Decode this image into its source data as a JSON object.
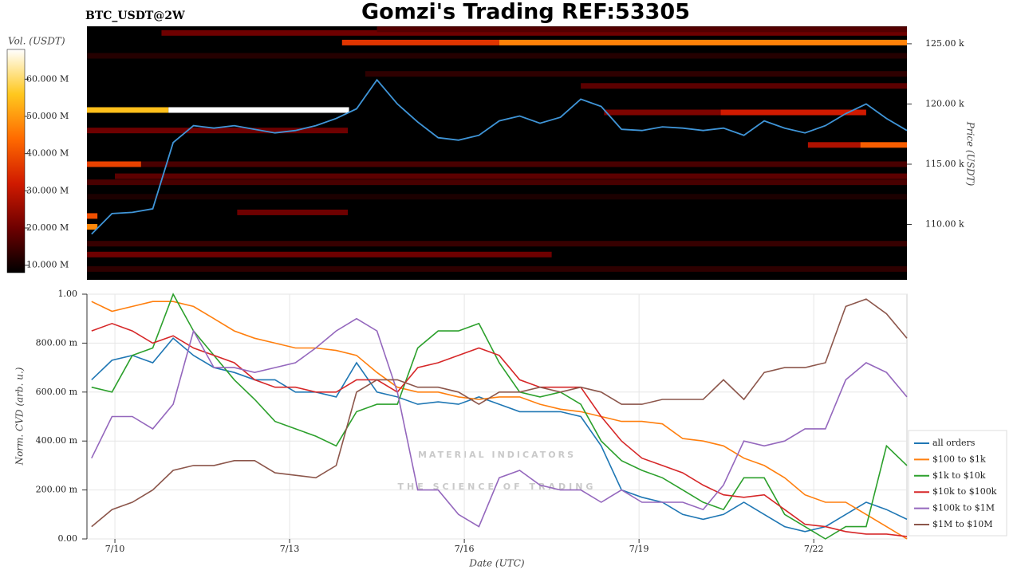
{
  "chart_data": [
    {
      "type": "heatmap",
      "title": "Gomzi's Trading REF:53305",
      "subtitle": "BTC_USDT@2W",
      "colorbar_label": "Vol. (USDT)",
      "clim": [
        8000000,
        68000000
      ],
      "colorscale": [
        "#000000",
        "#6e0000",
        "#d01a00",
        "#ff6a00",
        "#ffc81e",
        "#ffffff"
      ],
      "colorbar_ticks": [
        {
          "value": 10000000,
          "label": "10.000 M"
        },
        {
          "value": 20000000,
          "label": "20.000 M"
        },
        {
          "value": 30000000,
          "label": "30.000 M"
        },
        {
          "value": 40000000,
          "label": "40.000 M"
        },
        {
          "value": 50000000,
          "label": "50.000 M"
        },
        {
          "value": 60000000,
          "label": "60.000 M"
        }
      ],
      "y_label": "Price (USDT)",
      "ylim": [
        105400,
        126450
      ],
      "yticks": [
        {
          "value": 110000,
          "label": "110.00 k"
        },
        {
          "value": 115000,
          "label": "115.00 k"
        },
        {
          "value": 120000,
          "label": "120.00 k"
        },
        {
          "value": 125000,
          "label": "125.00 k"
        }
      ],
      "xlim": [
        9.52,
        23.6
      ],
      "x": [
        9.6,
        9.95,
        10.3,
        10.65,
        11.0,
        11.35,
        11.7,
        12.05,
        12.4,
        12.75,
        13.1,
        13.45,
        13.8,
        14.15,
        14.5,
        14.85,
        15.2,
        15.55,
        15.9,
        16.25,
        16.6,
        16.95,
        17.3,
        17.65,
        18.0,
        18.35,
        18.7,
        19.05,
        19.4,
        19.75,
        20.1,
        20.45,
        20.8,
        21.15,
        21.5,
        21.85,
        22.2,
        22.55,
        22.9,
        23.25,
        23.6
      ],
      "price": {
        "color": "#3f95d8",
        "values": [
          109200,
          110900,
          111000,
          111300,
          116800,
          118200,
          118000,
          118200,
          117900,
          117600,
          117800,
          118200,
          118800,
          119600,
          122000,
          120000,
          118500,
          117200,
          117000,
          117400,
          118600,
          119000,
          118400,
          118900,
          120400,
          119800,
          117900,
          117800,
          118100,
          118000,
          117800,
          118000,
          117400,
          118600,
          118000,
          117600,
          118200,
          119200,
          120000,
          118800,
          117800
        ]
      },
      "levels": [
        {
          "price": 119500,
          "x0": 9.52,
          "x1": 10.92,
          "volume": 55000000
        },
        {
          "price": 119500,
          "x0": 10.92,
          "x1": 14.02,
          "volume": 68000000
        },
        {
          "price": 125100,
          "x0": 13.9,
          "x1": 16.6,
          "volume": 36000000
        },
        {
          "price": 125100,
          "x0": 16.6,
          "x1": 23.6,
          "volume": 47000000
        },
        {
          "price": 125900,
          "x0": 10.8,
          "x1": 23.6,
          "volume": 20000000
        },
        {
          "price": 126200,
          "x0": 14.5,
          "x1": 23.6,
          "volume": 17000000
        },
        {
          "price": 115000,
          "x0": 9.52,
          "x1": 10.45,
          "volume": 38000000
        },
        {
          "price": 115000,
          "x0": 10.45,
          "x1": 23.6,
          "volume": 16000000
        },
        {
          "price": 116600,
          "x0": 22.8,
          "x1": 23.6,
          "volume": 42000000
        },
        {
          "price": 116600,
          "x0": 21.9,
          "x1": 22.8,
          "volume": 28000000
        },
        {
          "price": 119300,
          "x0": 20.4,
          "x1": 22.9,
          "volume": 32000000
        },
        {
          "price": 119300,
          "x0": 18.4,
          "x1": 20.4,
          "volume": 22000000
        },
        {
          "price": 109800,
          "x0": 9.52,
          "x1": 9.7,
          "volume": 48000000
        },
        {
          "price": 110700,
          "x0": 9.52,
          "x1": 9.7,
          "volume": 40000000
        },
        {
          "price": 108400,
          "x0": 9.52,
          "x1": 23.6,
          "volume": 14000000
        },
        {
          "price": 107500,
          "x0": 9.52,
          "x1": 17.5,
          "volume": 20000000
        },
        {
          "price": 106300,
          "x0": 9.52,
          "x1": 23.6,
          "volume": 13000000
        },
        {
          "price": 111000,
          "x0": 12.1,
          "x1": 14.0,
          "volume": 20000000
        },
        {
          "price": 113500,
          "x0": 9.52,
          "x1": 23.6,
          "volume": 16000000
        },
        {
          "price": 114000,
          "x0": 10.0,
          "x1": 23.6,
          "volume": 18000000
        },
        {
          "price": 117800,
          "x0": 9.52,
          "x1": 14.0,
          "volume": 20000000
        },
        {
          "price": 121500,
          "x0": 18.0,
          "x1": 23.6,
          "volume": 18000000
        },
        {
          "price": 124000,
          "x0": 9.52,
          "x1": 23.6,
          "volume": 12000000
        },
        {
          "price": 112300,
          "x0": 9.52,
          "x1": 23.6,
          "volume": 11000000
        },
        {
          "price": 122500,
          "x0": 14.3,
          "x1": 23.6,
          "volume": 13000000
        }
      ]
    },
    {
      "type": "line",
      "y_label": "Norm. CVD (arb. u.)",
      "x_label": "Date (UTC)",
      "grid": true,
      "annotations": [
        "MATERIAL INDICATORS",
        "THE SCIENCE OF TRADING"
      ],
      "xlim": [
        9.52,
        23.6
      ],
      "xticks": [
        {
          "value": 10,
          "label": "7/10"
        },
        {
          "value": 13,
          "label": "7/13"
        },
        {
          "value": 16,
          "label": "7/16"
        },
        {
          "value": 19,
          "label": "7/19"
        },
        {
          "value": 22,
          "label": "7/22"
        }
      ],
      "ylim": [
        0,
        1
      ],
      "yticks": [
        {
          "value": 0,
          "label": "0.00"
        },
        {
          "value": 0.2,
          "label": "200.00 m"
        },
        {
          "value": 0.4,
          "label": "400.00 m"
        },
        {
          "value": 0.6,
          "label": "600.00 m"
        },
        {
          "value": 0.8,
          "label": "800.00 m"
        },
        {
          "value": 1,
          "label": "1.00"
        }
      ],
      "x": [
        9.6,
        9.95,
        10.3,
        10.65,
        11.0,
        11.35,
        11.7,
        12.05,
        12.4,
        12.75,
        13.1,
        13.45,
        13.8,
        14.15,
        14.5,
        14.85,
        15.2,
        15.55,
        15.9,
        16.25,
        16.6,
        16.95,
        17.3,
        17.65,
        18.0,
        18.35,
        18.7,
        19.05,
        19.4,
        19.75,
        20.1,
        20.45,
        20.8,
        21.15,
        21.5,
        21.85,
        22.2,
        22.55,
        22.9,
        23.25,
        23.6
      ],
      "series": [
        {
          "name": "all orders",
          "color": "#1f77b4",
          "values": [
            0.65,
            0.73,
            0.75,
            0.72,
            0.82,
            0.75,
            0.7,
            0.68,
            0.65,
            0.65,
            0.6,
            0.6,
            0.58,
            0.72,
            0.6,
            0.58,
            0.55,
            0.56,
            0.55,
            0.58,
            0.55,
            0.52,
            0.52,
            0.52,
            0.5,
            0.38,
            0.2,
            0.17,
            0.15,
            0.1,
            0.08,
            0.1,
            0.15,
            0.1,
            0.05,
            0.03,
            0.05,
            0.1,
            0.15,
            0.12,
            0.08
          ]
        },
        {
          "name": "$100 to $1k",
          "color": "#ff7f0e",
          "values": [
            0.97,
            0.93,
            0.95,
            0.97,
            0.97,
            0.95,
            0.9,
            0.85,
            0.82,
            0.8,
            0.78,
            0.78,
            0.77,
            0.75,
            0.68,
            0.62,
            0.6,
            0.6,
            0.58,
            0.57,
            0.58,
            0.58,
            0.55,
            0.53,
            0.52,
            0.5,
            0.48,
            0.48,
            0.47,
            0.41,
            0.4,
            0.38,
            0.33,
            0.3,
            0.25,
            0.18,
            0.15,
            0.15,
            0.1,
            0.05,
            0.0
          ]
        },
        {
          "name": "$1k to $10k",
          "color": "#2ca02c",
          "values": [
            0.62,
            0.6,
            0.75,
            0.78,
            1.0,
            0.85,
            0.75,
            0.65,
            0.57,
            0.48,
            0.45,
            0.42,
            0.38,
            0.52,
            0.55,
            0.55,
            0.78,
            0.85,
            0.85,
            0.88,
            0.72,
            0.6,
            0.58,
            0.6,
            0.55,
            0.4,
            0.32,
            0.28,
            0.25,
            0.2,
            0.15,
            0.12,
            0.25,
            0.25,
            0.1,
            0.05,
            0.0,
            0.05,
            0.05,
            0.38,
            0.3
          ]
        },
        {
          "name": "$10k to $100k",
          "color": "#d62728",
          "values": [
            0.85,
            0.88,
            0.85,
            0.8,
            0.83,
            0.78,
            0.75,
            0.72,
            0.65,
            0.62,
            0.62,
            0.6,
            0.6,
            0.65,
            0.65,
            0.6,
            0.7,
            0.72,
            0.75,
            0.78,
            0.75,
            0.65,
            0.62,
            0.62,
            0.62,
            0.5,
            0.4,
            0.33,
            0.3,
            0.27,
            0.22,
            0.18,
            0.17,
            0.18,
            0.12,
            0.06,
            0.05,
            0.03,
            0.02,
            0.02,
            0.01
          ]
        },
        {
          "name": "$100k to $1M",
          "color": "#9467bd",
          "values": [
            0.33,
            0.5,
            0.5,
            0.45,
            0.55,
            0.85,
            0.7,
            0.7,
            0.68,
            0.7,
            0.72,
            0.78,
            0.85,
            0.9,
            0.85,
            0.6,
            0.2,
            0.2,
            0.1,
            0.05,
            0.25,
            0.28,
            0.22,
            0.2,
            0.2,
            0.15,
            0.2,
            0.15,
            0.15,
            0.15,
            0.12,
            0.22,
            0.4,
            0.38,
            0.4,
            0.45,
            0.45,
            0.65,
            0.72,
            0.68,
            0.58
          ]
        },
        {
          "name": "$1M to $10M",
          "color": "#8c564b",
          "values": [
            0.05,
            0.12,
            0.15,
            0.2,
            0.28,
            0.3,
            0.3,
            0.32,
            0.32,
            0.27,
            0.26,
            0.25,
            0.3,
            0.6,
            0.65,
            0.65,
            0.62,
            0.62,
            0.6,
            0.55,
            0.6,
            0.6,
            0.62,
            0.6,
            0.62,
            0.6,
            0.55,
            0.55,
            0.57,
            0.57,
            0.57,
            0.65,
            0.57,
            0.68,
            0.7,
            0.7,
            0.72,
            0.95,
            0.98,
            0.92,
            0.82
          ]
        }
      ]
    }
  ]
}
